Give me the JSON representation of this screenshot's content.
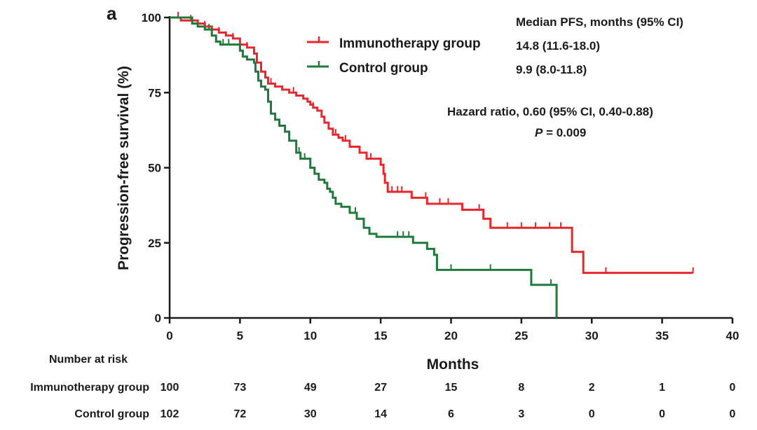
{
  "panel_label": "a",
  "chart_data": {
    "type": "line",
    "subtype": "kaplan-meier step",
    "xlabel": "Months",
    "ylabel": "Progression-free survival (%)",
    "xlim": [
      0,
      40
    ],
    "ylim": [
      0,
      100
    ],
    "x_ticks": [
      "0",
      "5",
      "10",
      "15",
      "20",
      "25",
      "30",
      "35",
      "40"
    ],
    "y_ticks": [
      "0",
      "25",
      "50",
      "75",
      "100"
    ],
    "grid": false,
    "legend_position": "top-center",
    "median_header": "Median PFS, months (95% CI)",
    "hazard_ratio_text": "Hazard ratio, 0.60 (95% CI, 0.40-0.88)",
    "p_label": "P",
    "p_value": "= 0.009",
    "series": [
      {
        "name": "Immunotherapy group",
        "color": "#e8262c",
        "median_text": "14.8 (11.6-18.0)",
        "points": [
          [
            0,
            100
          ],
          [
            0.8,
            99
          ],
          [
            1.5,
            99
          ],
          [
            2,
            98
          ],
          [
            2.5,
            97
          ],
          [
            3,
            96
          ],
          [
            3.5,
            95
          ],
          [
            4,
            94
          ],
          [
            4.5,
            93
          ],
          [
            5,
            91
          ],
          [
            5.5,
            90
          ],
          [
            6,
            88
          ],
          [
            6.2,
            85
          ],
          [
            6.5,
            82
          ],
          [
            6.8,
            80
          ],
          [
            7,
            78
          ],
          [
            7.5,
            77
          ],
          [
            8,
            76
          ],
          [
            8.5,
            75
          ],
          [
            9,
            74
          ],
          [
            9.5,
            73
          ],
          [
            9.8,
            72
          ],
          [
            10,
            71
          ],
          [
            10.2,
            70
          ],
          [
            10.5,
            69
          ],
          [
            10.8,
            67
          ],
          [
            11,
            65
          ],
          [
            11.3,
            63
          ],
          [
            11.6,
            61
          ],
          [
            12,
            60
          ],
          [
            12.3,
            59
          ],
          [
            12.8,
            57
          ],
          [
            13.5,
            55
          ],
          [
            14,
            53
          ],
          [
            14.5,
            53
          ],
          [
            15,
            51
          ],
          [
            15.2,
            48
          ],
          [
            15.3,
            45
          ],
          [
            15.5,
            42
          ],
          [
            17,
            42
          ],
          [
            17.2,
            40
          ],
          [
            18,
            40
          ],
          [
            18.3,
            38
          ],
          [
            20.5,
            38
          ],
          [
            20.8,
            36
          ],
          [
            22,
            36
          ],
          [
            22.3,
            33
          ],
          [
            22.8,
            30
          ],
          [
            27.5,
            30
          ],
          [
            28.6,
            30
          ],
          [
            28.6,
            22
          ],
          [
            29.4,
            22
          ],
          [
            29.4,
            15
          ],
          [
            37.2,
            15
          ]
        ],
        "censor_x": [
          0.6,
          1.5,
          2.5,
          3.5,
          4.5,
          5.5,
          7.2,
          8.8,
          10.2,
          11.8,
          12.5,
          13.5,
          14.3,
          15.8,
          16.2,
          16.5,
          18.2,
          19.2,
          19.8,
          22,
          24,
          25,
          26,
          27,
          27.8,
          31,
          37.2
        ],
        "at_risk": [
          "100",
          "73",
          "49",
          "27",
          "15",
          "8",
          "2",
          "1",
          "0"
        ]
      },
      {
        "name": "Control group",
        "color": "#1e7a3a",
        "median_text": "9.9 (8.0-11.8)",
        "points": [
          [
            0,
            100
          ],
          [
            1.5,
            100
          ],
          [
            1.6,
            98
          ],
          [
            2,
            97
          ],
          [
            2.5,
            96
          ],
          [
            3,
            94
          ],
          [
            3.3,
            92
          ],
          [
            3.6,
            91
          ],
          [
            5,
            89
          ],
          [
            5.2,
            87
          ],
          [
            5.5,
            86
          ],
          [
            6,
            85
          ],
          [
            6.1,
            82
          ],
          [
            6.3,
            79
          ],
          [
            6.5,
            77
          ],
          [
            6.8,
            76
          ],
          [
            7,
            72
          ],
          [
            7.2,
            68
          ],
          [
            7.5,
            66
          ],
          [
            7.8,
            64
          ],
          [
            8.2,
            62
          ],
          [
            8.5,
            59
          ],
          [
            9,
            55
          ],
          [
            9.3,
            53
          ],
          [
            10,
            50
          ],
          [
            10.3,
            48
          ],
          [
            10.6,
            46
          ],
          [
            11,
            45
          ],
          [
            11.2,
            43
          ],
          [
            11.4,
            42
          ],
          [
            11.6,
            40
          ],
          [
            11.8,
            38
          ],
          [
            12.2,
            37
          ],
          [
            12.8,
            35
          ],
          [
            13.3,
            33
          ],
          [
            13.8,
            30
          ],
          [
            14.2,
            28
          ],
          [
            14.7,
            27
          ],
          [
            17,
            27
          ],
          [
            17.3,
            25
          ],
          [
            18.3,
            23
          ],
          [
            18.8,
            21
          ],
          [
            19,
            16
          ],
          [
            25.6,
            16
          ],
          [
            25.7,
            11
          ],
          [
            27.3,
            11
          ],
          [
            27.5,
            0
          ]
        ],
        "censor_x": [
          2.8,
          3.8,
          4.2,
          9.2,
          9.6,
          13.2,
          16.2,
          16.6,
          17,
          20,
          22.8,
          27.1
        ],
        "at_risk": [
          "102",
          "72",
          "30",
          "14",
          "6",
          "3",
          "0",
          "0",
          "0"
        ]
      }
    ],
    "risk_table": {
      "title": "Number at risk",
      "times": [
        0,
        5,
        10,
        15,
        20,
        25,
        30,
        35,
        40
      ]
    }
  }
}
